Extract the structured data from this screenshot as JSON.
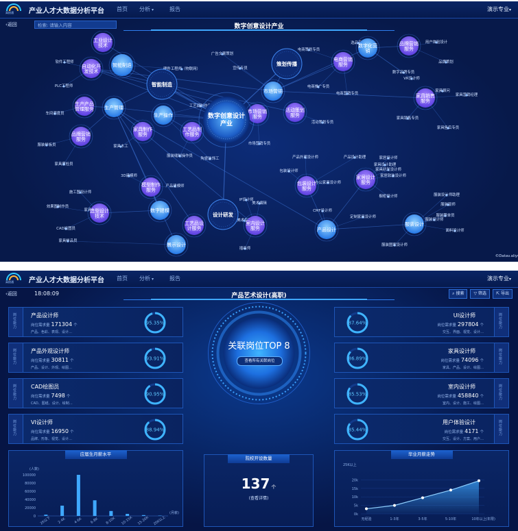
{
  "app": {
    "title": "产业人才大数据分析平台",
    "logo_text": "高校通"
  },
  "nav": {
    "home": "首页",
    "analysis": "分析",
    "report": "报告",
    "user": "演示专业"
  },
  "screen1": {
    "back": "返回",
    "search_placeholder": "检索: 请输入内容",
    "title": "数字创意设计产业",
    "hub": "数字创意设计产业",
    "hubs": [
      {
        "label": "智能制造"
      },
      {
        "label": "策划传播"
      },
      {
        "label": "设计研发"
      }
    ],
    "nodes": [
      {
        "label": "智能制造"
      },
      {
        "label": "自动化开发技术"
      },
      {
        "label": "生产管理"
      },
      {
        "label": "生产产品管理服务"
      },
      {
        "label": "生产操作"
      },
      {
        "label": "家具制作服务"
      },
      {
        "label": "工艺品制作服务"
      },
      {
        "label": "品牌营销服务"
      },
      {
        "label": "市场营销"
      },
      {
        "label": "数字化营销"
      },
      {
        "label": "电商营销服务"
      },
      {
        "label": "市场营销服务"
      },
      {
        "label": "活动策划服务"
      },
      {
        "label": "品牌营销服务"
      },
      {
        "label": "家具销售服务"
      },
      {
        "label": "数字建模"
      },
      {
        "label": "模型制作服务"
      },
      {
        "label": "造型设计技术"
      },
      {
        "label": "展示设计"
      },
      {
        "label": "室内设计服务"
      },
      {
        "label": "工艺品设计服务"
      },
      {
        "label": "包装设计服务"
      },
      {
        "label": "产品设计"
      },
      {
        "label": "家居设计服务"
      },
      {
        "label": "服装设计"
      },
      {
        "label": "工业设计技术"
      }
    ],
    "leaves": [
      {
        "label": "软件工程师"
      },
      {
        "label": "PLC工程师"
      },
      {
        "label": "车间调度员"
      },
      {
        "label": "服装样板员"
      },
      {
        "label": "家具质检员"
      },
      {
        "label": "家具木工"
      },
      {
        "label": "硬件工程师（物联网）"
      },
      {
        "label": "工艺调制作员"
      },
      {
        "label": "服装缝制操作员"
      },
      {
        "label": "陶瓷装饰工"
      },
      {
        "label": "广告文案策划"
      },
      {
        "label": "宣传专员"
      },
      {
        "label": "电商策划专员"
      },
      {
        "label": "选品专员"
      },
      {
        "label": "电商推广专员"
      },
      {
        "label": "电商营销专员"
      },
      {
        "label": "用户体验设计"
      },
      {
        "label": "品牌策划"
      },
      {
        "label": "数字品牌专员"
      },
      {
        "label": "VR设计师"
      },
      {
        "label": "家具顾问"
      },
      {
        "label": "家具营销经理"
      },
      {
        "label": "家具销售专员"
      },
      {
        "label": "家具售后专员"
      },
      {
        "label": "活动策划专员"
      },
      {
        "label": "市场营销专员"
      },
      {
        "label": "3D建模师"
      },
      {
        "label": "产品建模师"
      },
      {
        "label": "施工图设计师"
      },
      {
        "label": "效果图制作员"
      },
      {
        "label": "CAD绘图员"
      },
      {
        "label": "家具样品员"
      },
      {
        "label": "家具设计师"
      },
      {
        "label": "IP设计师"
      },
      {
        "label": "美术编辑"
      },
      {
        "label": "美术指导"
      },
      {
        "label": "插画师"
      },
      {
        "label": "包装设计师"
      },
      {
        "label": "产品外观设计师"
      },
      {
        "label": "产品设计助理"
      },
      {
        "label": "办公家具设计师"
      },
      {
        "label": "CMF设计师"
      },
      {
        "label": "定制家具设计师"
      },
      {
        "label": "家居设计师"
      },
      {
        "label": "家具设计助理"
      },
      {
        "label": "家具研发设计师"
      },
      {
        "label": "家居软装设计师"
      },
      {
        "label": "橱柜设计师"
      },
      {
        "label": "服装设计师助理"
      },
      {
        "label": "服装版师"
      },
      {
        "label": "服装设计师"
      },
      {
        "label": "服装跟单员"
      },
      {
        "label": "面料设计师"
      },
      {
        "label": "服装图案设计师"
      }
    ],
    "credit": "©Datav.aliyunCS"
  },
  "screen2": {
    "back": "返回",
    "time": "18:08:09",
    "title": "产品艺术设计(高职)",
    "tools": [
      "搜索",
      "筛选",
      "导出"
    ],
    "side_label": "岗位能力",
    "demand_label": "岗位需求量",
    "demand_unit": "个",
    "left_cards": [
      {
        "name": "产品设计师",
        "demand": "171304",
        "skills": "产品、色彩、表现、设计…",
        "percent": "95.35%",
        "ratio": 0.9535
      },
      {
        "name": "产品外观设计师",
        "demand": "30811",
        "skills": "产品、设计、外观、绘图…",
        "percent": "93.91%",
        "ratio": 0.9391
      },
      {
        "name": "CAD绘图员",
        "demand": "7498",
        "skills": "CAD、图纸、设计、绘制…",
        "percent": "90.95%",
        "ratio": 0.9095
      },
      {
        "name": "VI设计师",
        "demand": "16950",
        "skills": "品牌、形象、视觉、设计…",
        "percent": "88.94%",
        "ratio": 0.8894
      }
    ],
    "right_cards": [
      {
        "name": "UI设计师",
        "demand": "297804",
        "skills": "交互、界面、视觉、设计…",
        "percent": "87.64%",
        "ratio": 0.8764
      },
      {
        "name": "家具设计师",
        "demand": "74096",
        "skills": "家具、产品、设计、绘图…",
        "percent": "86.89%",
        "ratio": 0.8689
      },
      {
        "name": "室内设计师",
        "demand": "458840",
        "skills": "室内、设计、施工、绘图…",
        "percent": "85.53%",
        "ratio": 0.8553
      },
      {
        "name": "用户体验设计",
        "demand": "4171",
        "skills": "交互、设计、方案、用户…",
        "percent": "85.44%",
        "ratio": 0.8544
      }
    ],
    "hero": {
      "title": "关联岗位TOP 8",
      "button": "查看所有关联岗位"
    },
    "salary_panel": {
      "title": "应届生月薪水平"
    },
    "school_panel": {
      "title": "院校开设数量",
      "count": "137",
      "unit": "个",
      "sub": "(查看详情)"
    },
    "trend_panel": {
      "title": "毕业月薪走势"
    }
  },
  "chart_data": [
    {
      "type": "bar",
      "title": "应届生月薪水平",
      "ylabel": "(人数)",
      "xlabel": "(月薪)",
      "categories": [
        "2K以下",
        "2-4K",
        "4-6K",
        "6-8K",
        "8-10K",
        "10-15K",
        "15-20K",
        "20K以上"
      ],
      "values": [
        3000,
        25000,
        100000,
        38000,
        12000,
        5000,
        2000,
        800
      ],
      "ylim": [
        0,
        100000
      ],
      "yticks": [
        "100000",
        "80000",
        "60000",
        "40000",
        "20000",
        "0"
      ],
      "color": "#3fa8ff"
    },
    {
      "type": "area",
      "title": "毕业月薪走势",
      "ylabel": "25K以上",
      "xlabel": "(年限)",
      "categories": [
        "无经验",
        "1-3年",
        "3-5年",
        "5-10年",
        "10年以上"
      ],
      "values": [
        3000,
        5000,
        9500,
        14000,
        19500
      ],
      "ylim": [
        0,
        25000
      ],
      "yticks": [
        "20k",
        "15k",
        "10k",
        "5k",
        "0k"
      ],
      "color": "#3fa8ff"
    }
  ]
}
